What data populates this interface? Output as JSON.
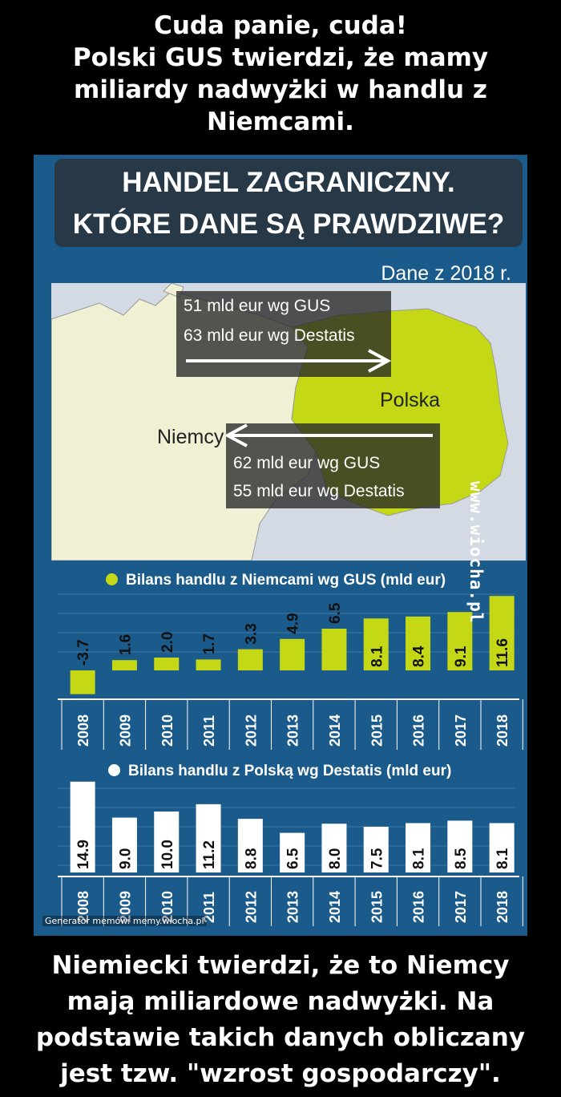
{
  "caption_top": [
    "Cuda panie, cuda!",
    "Polski GUS twierdzi, że mamy",
    "miliardy nadwyżki w handlu z",
    "Niemcami."
  ],
  "caption_bottom": [
    "Niemiecki twierdzi, że to Niemcy",
    "mają miliardowe nadwyżki. Na",
    "podstawie takich danych obliczany",
    "jest tzw. \"wzrost gospodarczy\"."
  ],
  "infographic": {
    "title": [
      "HANDEL ZAGRANICZNY.",
      "KTÓRE DANE SĄ PRAWDZIWE?"
    ],
    "year_note": "Dane z 2018 r.",
    "export_flow": {
      "line1": "51 mld eur wg GUS",
      "line2": "63 mld eur wg Destatis"
    },
    "import_flow": {
      "line1": "62 mld eur wg GUS",
      "line2": "55 mld eur wg Destatis"
    },
    "label_germany": "Niemcy",
    "label_poland": "Polska",
    "colors": {
      "background": "#1b5b8c",
      "poland": "#c5d816",
      "germany": "#eff0d4",
      "title_box": "#273847"
    }
  },
  "watermark_side": "www.wiocha.pl",
  "watermark_bottom": "Generator memów:  memy.wiocha.pl",
  "chart_data": [
    {
      "type": "bar",
      "title": "Bilans handlu z Niemcami wg GUS (mld eur)",
      "color": "#c5d816",
      "categories": [
        "2008",
        "2009",
        "2010",
        "2011",
        "2012",
        "2013",
        "2014",
        "2015",
        "2016",
        "2017",
        "2018"
      ],
      "values": [
        -3.7,
        1.6,
        2.0,
        1.7,
        3.3,
        4.9,
        6.5,
        8.1,
        8.4,
        9.1,
        11.6
      ],
      "labels": [
        "-3.7",
        "1.6",
        "2.0",
        "1.7",
        "3.3",
        "4.9",
        "6.5",
        "8.1",
        "8.4",
        "9.1",
        "11.6"
      ]
    },
    {
      "type": "bar",
      "title": "Bilans handlu z Polską wg Destatis (mld eur)",
      "color": "#ffffff",
      "categories": [
        "2008",
        "2009",
        "2010",
        "2011",
        "2012",
        "2013",
        "2014",
        "2015",
        "2016",
        "2017",
        "2018"
      ],
      "values": [
        14.9,
        9.0,
        10.0,
        11.2,
        8.8,
        6.5,
        8.0,
        7.5,
        8.1,
        8.5,
        8.1
      ],
      "labels": [
        "14.9",
        "9.0",
        "10.0",
        "11.2",
        "8.8",
        "6.5",
        "8.0",
        "7.5",
        "8.1",
        "8.5",
        "8.1"
      ]
    }
  ]
}
